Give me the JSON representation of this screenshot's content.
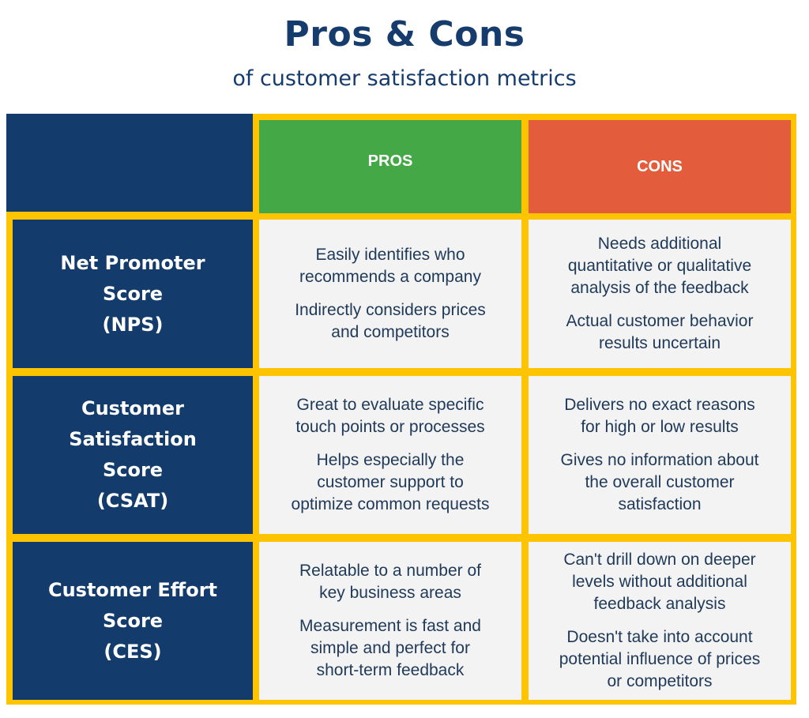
{
  "header": {
    "title": "Pros & Cons",
    "subtitle": "of customer satisfaction metrics"
  },
  "columns": {
    "pros": "PROS",
    "cons": "CONS"
  },
  "colors": {
    "navy": "#133b6c",
    "pros_green": "#43a845",
    "cons_red": "#e35c3b",
    "border_yellow": "#ffc400"
  },
  "rows": [
    {
      "metric_lines": [
        "Net Promoter",
        "Score",
        "(NPS)"
      ],
      "pros": [
        [
          "Easily identifies who",
          "recommends a company"
        ],
        [
          "Indirectly considers prices",
          "and competitors"
        ]
      ],
      "cons": [
        [
          "Needs additional",
          "quantitative or qualitative",
          "analysis of the feedback"
        ],
        [
          "Actual customer behavior",
          "results uncertain"
        ]
      ]
    },
    {
      "metric_lines": [
        "Customer",
        "Satisfaction",
        "Score",
        "(CSAT)"
      ],
      "pros": [
        [
          "Great to evaluate specific",
          "touch points or processes"
        ],
        [
          "Helps especially the",
          "customer support to",
          "optimize common requests"
        ]
      ],
      "cons": [
        [
          "Delivers no exact reasons",
          "for high or low results"
        ],
        [
          "Gives no information about",
          "the overall customer",
          "satisfaction"
        ]
      ]
    },
    {
      "metric_lines": [
        "Customer Effort",
        "Score",
        "(CES)"
      ],
      "pros": [
        [
          "Relatable to a number of",
          "key business areas"
        ],
        [
          "Measurement is fast and",
          "simple and perfect for",
          "short-term feedback"
        ]
      ],
      "cons": [
        [
          "Can't drill down on deeper",
          "levels without additional",
          "feedback analysis"
        ],
        [
          "Doesn't take into account",
          "potential influence of prices",
          "or competitors"
        ]
      ]
    }
  ]
}
